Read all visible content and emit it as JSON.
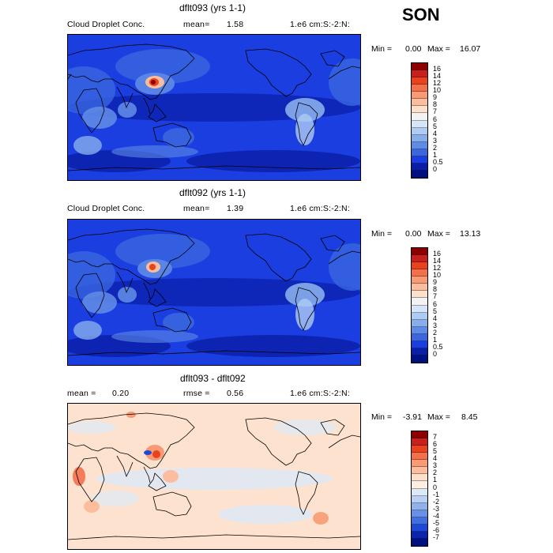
{
  "season": "SON",
  "colors": {
    "land_outline": "#000000",
    "map_background_panel12": "#1a3ee0",
    "map_background_panel3": "#fde3cf"
  },
  "panels": [
    {
      "id": "dflt093",
      "title": "dflt093 (yrs 1-1)",
      "left_label": "Cloud Droplet Conc.",
      "mean_label": "mean=",
      "mean_value": "1.58",
      "rmse_label": "",
      "rmse_value": "",
      "units": "1.e6 cm:S:-2:N:",
      "min_label": "Min =",
      "min_value": "0.00",
      "max_label": "Max =",
      "max_value": "16.07"
    },
    {
      "id": "dflt092",
      "title": "dflt092 (yrs 1-1)",
      "left_label": "Cloud Droplet Conc.",
      "mean_label": "mean=",
      "mean_value": "1.39",
      "rmse_label": "",
      "rmse_value": "",
      "units": "1.e6 cm:S:-2:N:",
      "min_label": "Min =",
      "min_value": "0.00",
      "max_label": "Max =",
      "max_value": "13.13"
    },
    {
      "id": "diff",
      "title": "dflt093 - dflt092",
      "left_label": "",
      "mean_label": "mean =",
      "mean_value": "0.20",
      "rmse_label": "rmse =",
      "rmse_value": "0.56",
      "units": "1.e6 cm:S:-2:N:",
      "min_label": "Min =",
      "min_value": "-3.91",
      "max_label": "Max =",
      "max_value": "8.45"
    }
  ],
  "chart_data": [
    {
      "type": "heatmap",
      "title": "dflt093 (yrs 1-1)",
      "subtitle": "Cloud Droplet Conc.",
      "units": "1.e6 cm:S:-2:N:",
      "mean": 1.58,
      "min": 0.0,
      "max": 16.07,
      "colorbar_levels": [
        "16",
        "14",
        "12",
        "10",
        "9",
        "8",
        "7",
        "6",
        "5",
        "4",
        "3",
        "2",
        "1",
        "0.5",
        "0"
      ],
      "colorbar_colors": [
        "#8e0000",
        "#c8201a",
        "#e8421f",
        "#f4704a",
        "#f89a74",
        "#fbbd9d",
        "#fde0c9",
        "#f3f3f3",
        "#d6e6fa",
        "#aecbf4",
        "#87aeec",
        "#5f8ae6",
        "#3a66e0",
        "#1a3ee0",
        "#0a1ea8",
        "#001080"
      ]
    },
    {
      "type": "heatmap",
      "title": "dflt092 (yrs 1-1)",
      "subtitle": "Cloud Droplet Conc.",
      "units": "1.e6 cm:S:-2:N:",
      "mean": 1.39,
      "min": 0.0,
      "max": 13.13,
      "colorbar_levels": [
        "16",
        "14",
        "12",
        "10",
        "9",
        "8",
        "7",
        "6",
        "5",
        "4",
        "3",
        "2",
        "1",
        "0.5",
        "0"
      ],
      "colorbar_colors": [
        "#8e0000",
        "#c8201a",
        "#e8421f",
        "#f4704a",
        "#f89a74",
        "#fbbd9d",
        "#fde0c9",
        "#f3f3f3",
        "#d6e6fa",
        "#aecbf4",
        "#87aeec",
        "#5f8ae6",
        "#3a66e0",
        "#1a3ee0",
        "#0a1ea8",
        "#001080"
      ]
    },
    {
      "type": "heatmap",
      "title": "dflt093 - dflt092",
      "units": "1.e6 cm:S:-2:N:",
      "mean": 0.2,
      "rmse": 0.56,
      "min": -3.91,
      "max": 8.45,
      "colorbar_levels": [
        "7",
        "6",
        "5",
        "4",
        "3",
        "2",
        "1",
        "0",
        "-1",
        "-2",
        "-3",
        "-4",
        "-5",
        "-6",
        "-7"
      ],
      "colorbar_colors": [
        "#8e0000",
        "#c8201a",
        "#e8421f",
        "#f4704a",
        "#f89a74",
        "#fbbd9d",
        "#fde0c9",
        "#fdeee2",
        "#dce9f8",
        "#b7d0f4",
        "#8fb2ec",
        "#6890e6",
        "#416ee0",
        "#1e48d6",
        "#0a24b0",
        "#001080"
      ]
    }
  ]
}
